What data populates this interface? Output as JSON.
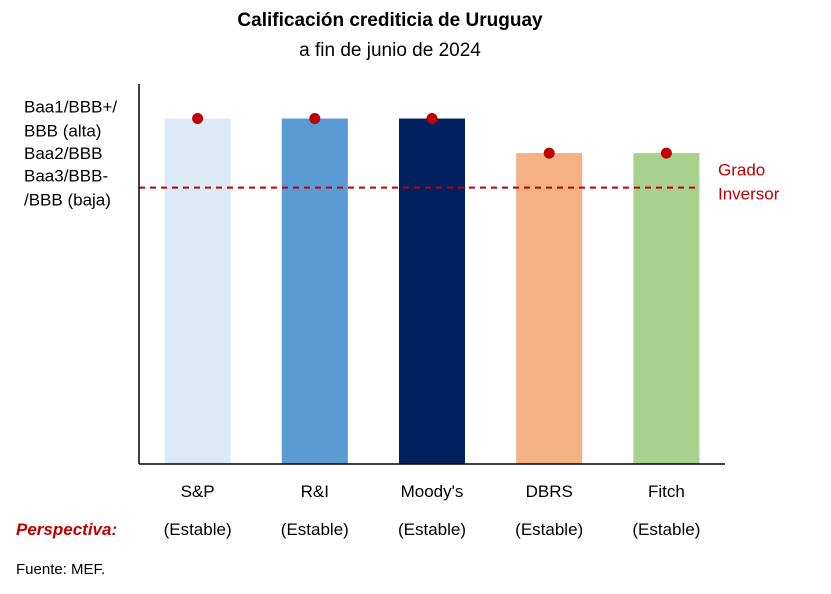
{
  "chart_data": {
    "type": "bar",
    "title": "Calificación crediticia de Uruguay",
    "subtitle": "a fin de junio de 2024",
    "categories": [
      "S&P",
      "R&I",
      "Moody's",
      "DBRS",
      "Fitch"
    ],
    "values": [
      3,
      3,
      3,
      2,
      2
    ],
    "bar_colors": [
      "#dde9f7",
      "#5b9bd5",
      "#002060",
      "#f4b183",
      "#a9d18e"
    ],
    "marker_color": "#c00000",
    "y_tick_labels": [
      {
        "value": 3,
        "lines": [
          "Baa1/BBB+/",
          "BBB (alta)"
        ]
      },
      {
        "value": 2,
        "lines": [
          "Baa2/BBB"
        ]
      },
      {
        "value": 1,
        "lines": [
          "Baa3/BBB-",
          "/BBB (baja)"
        ]
      }
    ],
    "threshold": {
      "value": 1,
      "label_lines": [
        "Grado",
        "Inversor"
      ],
      "color": "#c00000",
      "style": "dashed"
    },
    "perspective_label": "Perspectiva:",
    "perspectives": [
      "(Estable)",
      "(Estable)",
      "(Estable)",
      "(Estable)",
      "(Estable)"
    ],
    "source": "Fuente: MEF.",
    "ylim": [
      -7,
      4
    ],
    "grid": false,
    "legend": "none"
  }
}
